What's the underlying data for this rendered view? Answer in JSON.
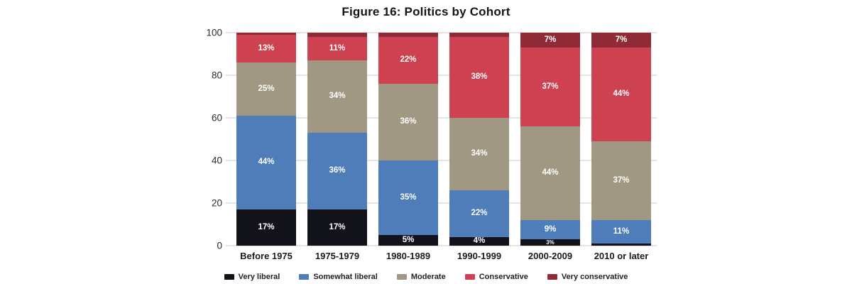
{
  "title": "Figure 16: Politics by Cohort",
  "chart_data": {
    "type": "bar",
    "stacked": true,
    "orientation": "vertical",
    "title": "Figure 16: Politics by Cohort",
    "categories": [
      "Before 1975",
      "1975-1979",
      "1980-1989",
      "1990-1999",
      "2000-2009",
      "2010 or later"
    ],
    "series": [
      {
        "name": "Very liberal",
        "color": "#12121a",
        "values": [
          17,
          17,
          5,
          4,
          3,
          1
        ],
        "labels": [
          "17%",
          "17%",
          "5%",
          "4%",
          "3%",
          ""
        ]
      },
      {
        "name": "Somewhat liberal",
        "color": "#4e7db9",
        "values": [
          44,
          36,
          35,
          22,
          9,
          11
        ],
        "labels": [
          "44%",
          "36%",
          "35%",
          "22%",
          "9%",
          "11%"
        ]
      },
      {
        "name": "Moderate",
        "color": "#a09882",
        "values": [
          25,
          34,
          36,
          34,
          44,
          37
        ],
        "labels": [
          "25%",
          "34%",
          "36%",
          "34%",
          "44%",
          "37%"
        ]
      },
      {
        "name": "Conservative",
        "color": "#ce4150",
        "values": [
          13,
          11,
          22,
          38,
          37,
          44
        ],
        "labels": [
          "13%",
          "11%",
          "22%",
          "38%",
          "37%",
          "44%"
        ]
      },
      {
        "name": "Very conservative",
        "color": "#8e2b37",
        "values": [
          1,
          2,
          2,
          2,
          7,
          7
        ],
        "labels": [
          "",
          "",
          "",
          "",
          "7%",
          "7%"
        ]
      }
    ],
    "xlabel": "",
    "ylabel": "",
    "ylim": [
      0,
      100
    ],
    "yticks": [
      0,
      20,
      40,
      60,
      80,
      100
    ],
    "grid": true,
    "grid_color": "#e4e4e4",
    "legend_position": "bottom",
    "label_color": "#ffffff"
  }
}
